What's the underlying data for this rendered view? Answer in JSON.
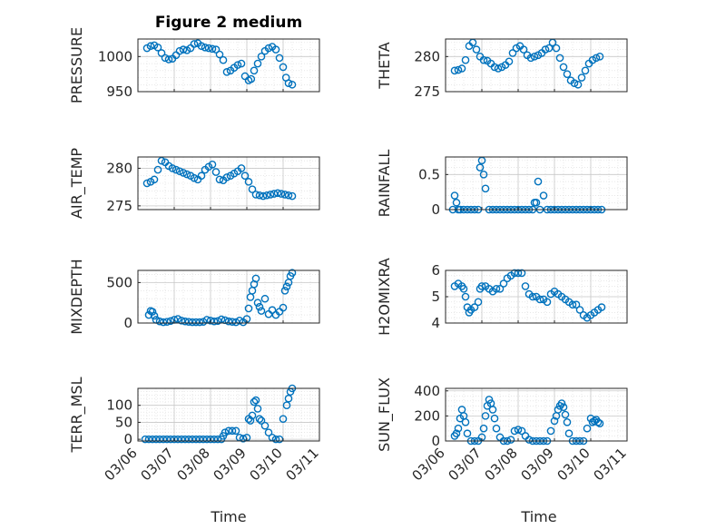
{
  "figure": {
    "title": "Figure 2 medium",
    "xlabel": "Time",
    "marker_color": "#0072bd"
  },
  "chart_data": [
    {
      "type": "scatter",
      "ylabel": "PRESSURE",
      "ylim": [
        950,
        1025
      ],
      "yticks": [
        950,
        1000
      ],
      "xlim": [
        0,
        5
      ],
      "xticks": [
        0,
        1,
        2,
        3,
        4,
        5
      ],
      "xticklabels": [
        "03/06",
        "03/07",
        "03/08",
        "03/09",
        "03/10",
        "03/11"
      ],
      "x": [
        0.25,
        0.35,
        0.45,
        0.55,
        0.65,
        0.75,
        0.85,
        0.95,
        1.05,
        1.15,
        1.25,
        1.35,
        1.45,
        1.55,
        1.65,
        1.75,
        1.85,
        1.95,
        2.05,
        2.15,
        2.25,
        2.35,
        2.45,
        2.55,
        2.65,
        2.75,
        2.85,
        2.95,
        3.05,
        3.12,
        3.2,
        3.3,
        3.4,
        3.5,
        3.6,
        3.7,
        3.8,
        3.9,
        4.0,
        4.08,
        4.15,
        4.25
      ],
      "y": [
        1012,
        1015,
        1016,
        1013,
        1005,
        998,
        996,
        997,
        1002,
        1008,
        1010,
        1009,
        1012,
        1018,
        1019,
        1015,
        1013,
        1012,
        1011,
        1010,
        1003,
        995,
        978,
        980,
        984,
        988,
        990,
        972,
        966,
        968,
        980,
        990,
        1000,
        1008,
        1012,
        1014,
        1010,
        998,
        985,
        970,
        962,
        960
      ]
    },
    {
      "type": "scatter",
      "ylabel": "THETA",
      "ylim": [
        275,
        282.5
      ],
      "yticks": [
        275,
        280
      ],
      "xlim": [
        0,
        5
      ],
      "xticks": [
        0,
        1,
        2,
        3,
        4,
        5
      ],
      "xticklabels": [
        "03/06",
        "03/07",
        "03/08",
        "03/09",
        "03/10",
        "03/11"
      ],
      "x": [
        0.25,
        0.35,
        0.45,
        0.55,
        0.65,
        0.75,
        0.85,
        0.95,
        1.05,
        1.15,
        1.25,
        1.35,
        1.45,
        1.55,
        1.65,
        1.75,
        1.85,
        1.95,
        2.05,
        2.15,
        2.25,
        2.35,
        2.45,
        2.55,
        2.65,
        2.75,
        2.85,
        2.95,
        3.05,
        3.15,
        3.25,
        3.35,
        3.45,
        3.55,
        3.65,
        3.75,
        3.85,
        3.95,
        4.05,
        4.15,
        4.25
      ],
      "y": [
        278.0,
        278.1,
        278.3,
        279.5,
        281.5,
        282.0,
        281.0,
        280.0,
        279.5,
        279.4,
        279.0,
        278.5,
        278.3,
        278.5,
        278.8,
        279.3,
        280.5,
        281.2,
        281.5,
        281.0,
        280.2,
        279.8,
        280.0,
        280.2,
        280.5,
        281.0,
        281.2,
        282.0,
        281.2,
        279.8,
        278.5,
        277.5,
        276.6,
        276.2,
        276.0,
        277.0,
        278.0,
        279.0,
        279.5,
        279.8,
        280.0
      ]
    },
    {
      "type": "scatter",
      "ylabel": "AIR_TEMP",
      "ylim": [
        274.5,
        281.5
      ],
      "yticks": [
        275,
        280
      ],
      "xlim": [
        0,
        5
      ],
      "xticks": [
        0,
        1,
        2,
        3,
        4,
        5
      ],
      "xticklabels": [
        "03/06",
        "03/07",
        "03/08",
        "03/09",
        "03/10",
        "03/11"
      ],
      "x": [
        0.25,
        0.35,
        0.45,
        0.55,
        0.65,
        0.75,
        0.85,
        0.95,
        1.05,
        1.15,
        1.25,
        1.35,
        1.45,
        1.55,
        1.65,
        1.75,
        1.85,
        1.95,
        2.05,
        2.15,
        2.25,
        2.35,
        2.45,
        2.55,
        2.65,
        2.75,
        2.85,
        2.95,
        3.05,
        3.15,
        3.25,
        3.35,
        3.45,
        3.55,
        3.65,
        3.75,
        3.85,
        3.95,
        4.05,
        4.15,
        4.25
      ],
      "y": [
        278.0,
        278.2,
        278.5,
        279.8,
        281.0,
        280.8,
        280.3,
        280.0,
        279.8,
        279.6,
        279.4,
        279.2,
        279.0,
        278.7,
        278.5,
        279.0,
        279.8,
        280.2,
        280.5,
        279.5,
        278.5,
        278.4,
        278.8,
        279.0,
        279.3,
        279.6,
        280.0,
        279.0,
        278.2,
        277.2,
        276.5,
        276.4,
        276.3,
        276.4,
        276.5,
        276.6,
        276.7,
        276.6,
        276.5,
        276.4,
        276.3
      ]
    },
    {
      "type": "scatter",
      "ylabel": "RAINFALL",
      "ylim": [
        0,
        0.75
      ],
      "yticks": [
        0,
        0.5
      ],
      "xlim": [
        0,
        5
      ],
      "xticks": [
        0,
        1,
        2,
        3,
        4,
        5
      ],
      "xticklabels": [
        "03/06",
        "03/07",
        "03/08",
        "03/09",
        "03/10",
        "03/11"
      ],
      "x": [
        0.2,
        0.25,
        0.3,
        0.35,
        0.4,
        0.5,
        0.6,
        0.7,
        0.8,
        0.9,
        0.95,
        1.0,
        1.05,
        1.1,
        1.2,
        1.3,
        1.4,
        1.5,
        1.6,
        1.7,
        1.8,
        1.9,
        2.0,
        2.1,
        2.2,
        2.3,
        2.4,
        2.45,
        2.5,
        2.55,
        2.6,
        2.7,
        2.8,
        2.9,
        3.0,
        3.1,
        3.2,
        3.3,
        3.4,
        3.5,
        3.6,
        3.7,
        3.8,
        3.9,
        4.0,
        4.1,
        4.2,
        4.3
      ],
      "y": [
        0,
        0.2,
        0.1,
        0,
        0,
        0,
        0,
        0,
        0,
        0,
        0.6,
        0.7,
        0.5,
        0.3,
        0,
        0,
        0,
        0,
        0,
        0,
        0,
        0,
        0,
        0,
        0,
        0,
        0,
        0.1,
        0.1,
        0.4,
        0,
        0.2,
        0,
        0,
        0,
        0,
        0,
        0,
        0,
        0,
        0,
        0,
        0,
        0,
        0,
        0,
        0,
        0
      ]
    },
    {
      "type": "scatter",
      "ylabel": "MIXDEPTH",
      "ylim": [
        0,
        650
      ],
      "yticks": [
        0,
        500
      ],
      "xlim": [
        0,
        5
      ],
      "xticks": [
        0,
        1,
        2,
        3,
        4,
        5
      ],
      "xticklabels": [
        "03/06",
        "03/07",
        "03/08",
        "03/09",
        "03/10",
        "03/11"
      ],
      "x": [
        0.3,
        0.35,
        0.4,
        0.45,
        0.5,
        0.6,
        0.7,
        0.8,
        0.9,
        1.0,
        1.1,
        1.2,
        1.3,
        1.4,
        1.5,
        1.6,
        1.7,
        1.8,
        1.9,
        2.0,
        2.1,
        2.2,
        2.3,
        2.4,
        2.5,
        2.6,
        2.7,
        2.8,
        2.9,
        3.0,
        3.05,
        3.1,
        3.15,
        3.2,
        3.25,
        3.3,
        3.35,
        3.4,
        3.5,
        3.6,
        3.7,
        3.8,
        3.9,
        4.0,
        4.05,
        4.1,
        4.15,
        4.2,
        4.25
      ],
      "y": [
        100,
        150,
        140,
        90,
        40,
        20,
        10,
        15,
        25,
        40,
        50,
        30,
        20,
        15,
        10,
        10,
        10,
        15,
        40,
        30,
        20,
        25,
        45,
        35,
        20,
        15,
        10,
        30,
        10,
        50,
        180,
        320,
        400,
        480,
        550,
        250,
        200,
        150,
        300,
        110,
        160,
        100,
        140,
        190,
        400,
        450,
        500,
        580,
        620
      ]
    },
    {
      "type": "scatter",
      "ylabel": "H2OMIXRA",
      "ylim": [
        4,
        6
      ],
      "yticks": [
        4,
        5,
        6
      ],
      "xlim": [
        0,
        5
      ],
      "xticks": [
        0,
        1,
        2,
        3,
        4,
        5
      ],
      "xticklabels": [
        "03/06",
        "03/07",
        "03/08",
        "03/09",
        "03/10",
        "03/11"
      ],
      "x": [
        0.25,
        0.35,
        0.45,
        0.5,
        0.55,
        0.6,
        0.65,
        0.7,
        0.8,
        0.9,
        0.95,
        1.0,
        1.1,
        1.2,
        1.3,
        1.4,
        1.5,
        1.6,
        1.7,
        1.8,
        1.9,
        2.0,
        2.1,
        2.2,
        2.3,
        2.4,
        2.5,
        2.6,
        2.7,
        2.8,
        2.9,
        3.0,
        3.1,
        3.2,
        3.3,
        3.4,
        3.5,
        3.6,
        3.7,
        3.8,
        3.9,
        4.0,
        4.1,
        4.2,
        4.3
      ],
      "y": [
        5.4,
        5.5,
        5.4,
        5.3,
        5.0,
        4.6,
        4.4,
        4.5,
        4.6,
        4.8,
        5.3,
        5.4,
        5.4,
        5.3,
        5.2,
        5.3,
        5.3,
        5.5,
        5.7,
        5.8,
        5.9,
        5.9,
        5.9,
        5.4,
        5.1,
        5.0,
        5.0,
        4.9,
        4.9,
        4.8,
        5.1,
        5.2,
        5.1,
        5.0,
        4.9,
        4.8,
        4.7,
        4.7,
        4.5,
        4.3,
        4.2,
        4.3,
        4.4,
        4.5,
        4.6
      ]
    },
    {
      "type": "scatter",
      "ylabel": "TERR_MSL",
      "ylim": [
        -5,
        150
      ],
      "yticks": [
        0,
        50,
        100
      ],
      "xlim": [
        0,
        5
      ],
      "xticks": [
        0,
        1,
        2,
        3,
        4,
        5
      ],
      "xticklabels": [
        "03/06",
        "03/07",
        "03/08",
        "03/09",
        "03/10",
        "03/11"
      ],
      "x": [
        0.2,
        0.3,
        0.4,
        0.5,
        0.6,
        0.7,
        0.8,
        0.9,
        1.0,
        1.1,
        1.2,
        1.3,
        1.4,
        1.5,
        1.6,
        1.7,
        1.8,
        1.9,
        2.0,
        2.1,
        2.2,
        2.3,
        2.35,
        2.4,
        2.5,
        2.6,
        2.7,
        2.8,
        2.9,
        3.0,
        3.05,
        3.1,
        3.15,
        3.2,
        3.25,
        3.3,
        3.35,
        3.4,
        3.5,
        3.6,
        3.7,
        3.8,
        3.9,
        4.0,
        4.1,
        4.15,
        4.2,
        4.25
      ],
      "y": [
        0,
        0,
        0,
        0,
        0,
        0,
        0,
        0,
        0,
        0,
        0,
        0,
        0,
        0,
        0,
        0,
        0,
        0,
        0,
        0,
        0,
        0,
        10,
        20,
        25,
        25,
        25,
        5,
        2,
        5,
        60,
        55,
        70,
        110,
        115,
        90,
        60,
        55,
        40,
        20,
        5,
        0,
        0,
        60,
        100,
        120,
        140,
        150
      ]
    },
    {
      "type": "scatter",
      "ylabel": "SUN_FLUX",
      "ylim": [
        0,
        420
      ],
      "yticks": [
        0,
        200,
        400
      ],
      "xlim": [
        0,
        5
      ],
      "xticks": [
        0,
        1,
        2,
        3,
        4,
        5
      ],
      "xticklabels": [
        "03/06",
        "03/07",
        "03/08",
        "03/09",
        "03/10",
        "03/11"
      ],
      "x": [
        0.25,
        0.3,
        0.35,
        0.4,
        0.45,
        0.5,
        0.55,
        0.6,
        0.7,
        0.8,
        0.9,
        1.0,
        1.05,
        1.1,
        1.15,
        1.2,
        1.25,
        1.3,
        1.35,
        1.4,
        1.5,
        1.6,
        1.7,
        1.8,
        1.9,
        2.0,
        2.1,
        2.2,
        2.3,
        2.4,
        2.5,
        2.6,
        2.7,
        2.8,
        2.9,
        3.0,
        3.05,
        3.1,
        3.15,
        3.2,
        3.25,
        3.3,
        3.35,
        3.4,
        3.5,
        3.6,
        3.7,
        3.8,
        3.9,
        4.0,
        4.05,
        4.1,
        4.15,
        4.2,
        4.25
      ],
      "y": [
        40,
        60,
        100,
        180,
        250,
        200,
        150,
        60,
        0,
        0,
        0,
        30,
        100,
        200,
        280,
        330,
        300,
        250,
        180,
        100,
        30,
        0,
        0,
        10,
        80,
        90,
        80,
        40,
        10,
        0,
        0,
        0,
        0,
        0,
        80,
        160,
        200,
        250,
        280,
        300,
        270,
        210,
        150,
        60,
        0,
        0,
        0,
        0,
        100,
        180,
        150,
        160,
        170,
        150,
        140
      ]
    }
  ]
}
